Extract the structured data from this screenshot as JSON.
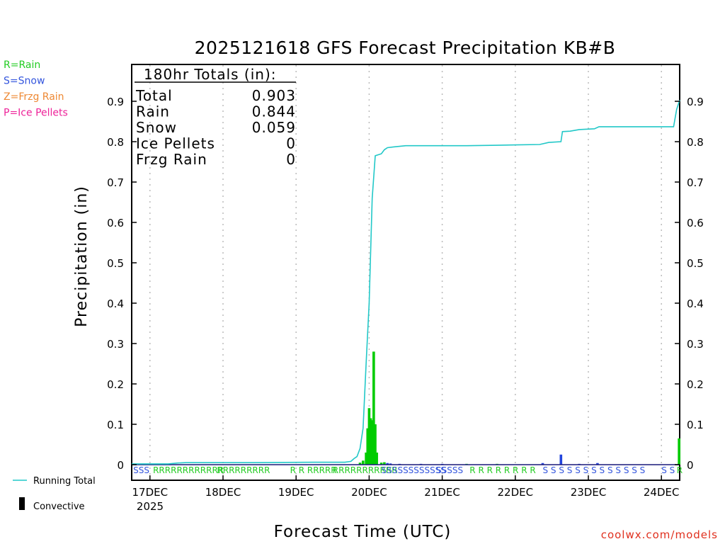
{
  "chart_data": {
    "type": "bar",
    "title": "2025121618 GFS Forecast Precipitation KB#B",
    "xlabel": "Forecast Time (UTC)",
    "ylabel": "Precipitation (in)",
    "ylim": [
      0,
      1.0
    ],
    "yticks": [
      0,
      0.1,
      0.2,
      0.3,
      0.4,
      0.5,
      0.6,
      0.7,
      0.8,
      0.9
    ],
    "ytick_labels": [
      "0",
      "0.1",
      "0.2",
      "0.3",
      "0.4",
      "0.5",
      "0.6",
      "0.7",
      "0.8",
      "0.9"
    ],
    "xlim_hours": [
      0,
      180
    ],
    "xticks_hours": [
      6,
      30,
      54,
      78,
      102,
      126,
      150,
      174
    ],
    "xtick_labels": [
      "17DEC",
      "18DEC",
      "19DEC",
      "20DEC",
      "21DEC",
      "22DEC",
      "23DEC",
      "24DEC"
    ],
    "x_sub_label": "2025",
    "type_legend": [
      {
        "text": "R=Rain",
        "color": "#22cc22"
      },
      {
        "text": "S=Snow",
        "color": "#3355dd"
      },
      {
        "text": "Z=Frzg Rain",
        "color": "#ee8833"
      },
      {
        "text": "P=Ice Pellets",
        "color": "#ee2299"
      }
    ],
    "totals_box": {
      "header": "180hr Totals (in):",
      "rows": [
        {
          "label": "Total",
          "value": "0.903"
        },
        {
          "label": "Rain",
          "value": "0.844"
        },
        {
          "label": "Snow",
          "value": "0.059"
        },
        {
          "label": "Ice Pellets",
          "value": "0"
        },
        {
          "label": "Frzg Rain",
          "value": "0"
        }
      ]
    },
    "series": [
      {
        "name": "Running Total",
        "color": "#22c8c8",
        "points": [
          [
            0,
            0.002
          ],
          [
            12,
            0.002
          ],
          [
            15,
            0.004
          ],
          [
            18,
            0.005
          ],
          [
            40,
            0.005
          ],
          [
            60,
            0.006
          ],
          [
            70,
            0.006
          ],
          [
            72,
            0.008
          ],
          [
            73,
            0.015
          ],
          [
            74,
            0.02
          ],
          [
            75,
            0.04
          ],
          [
            76,
            0.09
          ],
          [
            77,
            0.25
          ],
          [
            78,
            0.4
          ],
          [
            79,
            0.66
          ],
          [
            80,
            0.765
          ],
          [
            82,
            0.77
          ],
          [
            83,
            0.78
          ],
          [
            84,
            0.785
          ],
          [
            86,
            0.787
          ],
          [
            90,
            0.79
          ],
          [
            100,
            0.79
          ],
          [
            110,
            0.79
          ],
          [
            120,
            0.791
          ],
          [
            126,
            0.792
          ],
          [
            134,
            0.793
          ],
          [
            137,
            0.798
          ],
          [
            141,
            0.8
          ],
          [
            141.5,
            0.825
          ],
          [
            144,
            0.826
          ],
          [
            147,
            0.83
          ],
          [
            152,
            0.832
          ],
          [
            153.5,
            0.837
          ],
          [
            165,
            0.837
          ],
          [
            178,
            0.837
          ],
          [
            179,
            0.88
          ],
          [
            180,
            0.903
          ]
        ]
      }
    ],
    "bars": [
      {
        "hour": 75,
        "value": 0.005,
        "color": "#00cc00"
      },
      {
        "hour": 76,
        "value": 0.01,
        "color": "#00cc00"
      },
      {
        "hour": 77,
        "value": 0.03,
        "color": "#00cc00"
      },
      {
        "hour": 77.5,
        "value": 0.09,
        "color": "#00cc00"
      },
      {
        "hour": 78,
        "value": 0.14,
        "color": "#00cc00"
      },
      {
        "hour": 78.5,
        "value": 0.115,
        "color": "#00cc00"
      },
      {
        "hour": 79,
        "value": 0.11,
        "color": "#00cc00"
      },
      {
        "hour": 79.5,
        "value": 0.28,
        "color": "#00cc00"
      },
      {
        "hour": 80,
        "value": 0.1,
        "color": "#00cc00"
      },
      {
        "hour": 80.5,
        "value": 0.03,
        "color": "#00cc00"
      },
      {
        "hour": 82,
        "value": 0.005,
        "color": "#00cc00"
      },
      {
        "hour": 83,
        "value": 0.006,
        "color": "#00cc00"
      },
      {
        "hour": 84,
        "value": 0.004,
        "color": "#2244dd"
      },
      {
        "hour": 85,
        "value": 0.003,
        "color": "#2244dd"
      },
      {
        "hour": 88,
        "value": 0.002,
        "color": "#2244dd"
      },
      {
        "hour": 95,
        "value": 0.002,
        "color": "#2244dd"
      },
      {
        "hour": 102,
        "value": 0.002,
        "color": "#2244dd"
      },
      {
        "hour": 110,
        "value": 0.002,
        "color": "#00cc00"
      },
      {
        "hour": 120,
        "value": 0.002,
        "color": "#00cc00"
      },
      {
        "hour": 135,
        "value": 0.004,
        "color": "#2244dd"
      },
      {
        "hour": 141,
        "value": 0.025,
        "color": "#2244dd"
      },
      {
        "hour": 147,
        "value": 0.002,
        "color": "#2244dd"
      },
      {
        "hour": 153,
        "value": 0.004,
        "color": "#2244dd"
      },
      {
        "hour": 179.8,
        "value": 0.065,
        "color": "#00cc00"
      }
    ],
    "ptype_strip": [
      {
        "text": "SSS",
        "color": "#3355dd",
        "hour": 0.5
      },
      {
        "text": "RRRRRRRRRRRR",
        "color": "#22cc22",
        "hour": 7
      },
      {
        "text": "RRRRRRRRR",
        "color": "#22cc22",
        "hour": 28
      },
      {
        "text": "R R RRRRR",
        "color": "#22cc22",
        "hour": 52
      },
      {
        "text": "RRRRRRRRRRR",
        "color": "#22cc22",
        "hour": 66
      },
      {
        "text": "SSSSSSSSSSSS",
        "color": "#3355dd",
        "hour": 82
      },
      {
        "text": "SSSSS",
        "color": "#3355dd",
        "hour": 100
      },
      {
        "text": "R R R R R R R R",
        "color": "#22cc22",
        "hour": 111
      },
      {
        "text": "S S S S S S S S S S S S S",
        "color": "#3355dd",
        "hour": 135
      },
      {
        "text": "S S",
        "color": "#3355dd",
        "hour": 174
      },
      {
        "text": "R",
        "color": "#22cc22",
        "hour": 179
      }
    ],
    "bottom_legend": [
      {
        "text": "Running Total",
        "color": "#22c8c8",
        "kind": "line"
      },
      {
        "text": "Convective",
        "color": "#000000",
        "kind": "bar"
      }
    ]
  },
  "credit": "coolwx.com/models"
}
